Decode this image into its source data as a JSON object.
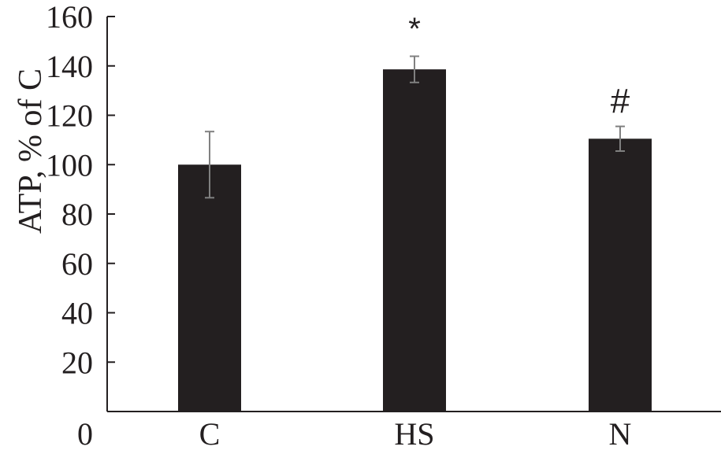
{
  "chart_data": {
    "type": "bar",
    "title": "",
    "xlabel": "",
    "ylabel": "ATP, % of C",
    "categories": [
      "C",
      "HS",
      "N"
    ],
    "values": [
      100,
      138.6,
      110.5
    ],
    "errors": [
      13.4,
      5.3,
      5.0
    ],
    "annotations": [
      "",
      "*",
      "#"
    ],
    "ylim": [
      0,
      160
    ],
    "yticks": [
      0,
      20,
      40,
      60,
      80,
      100,
      120,
      140,
      160
    ],
    "grid": false,
    "legend": null,
    "colors": {
      "bar": "#231f20",
      "error_bar": "#808080",
      "axis": "#231f20"
    }
  }
}
